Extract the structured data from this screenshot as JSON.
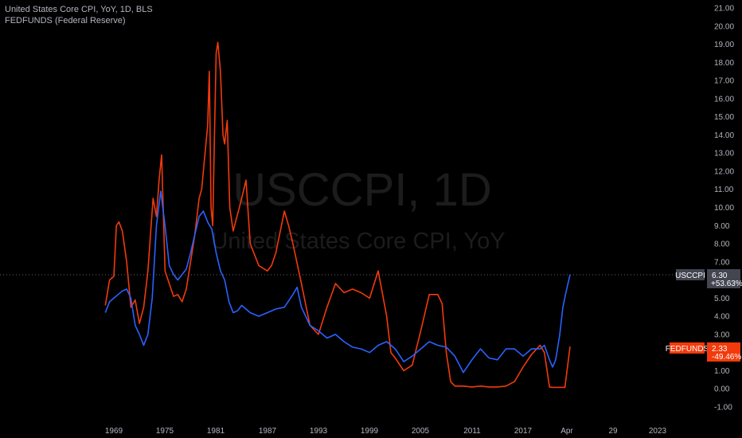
{
  "legend": {
    "line1": "United States Core CPI, YoY, 1D, BLS",
    "line2": "FEDFUNDS (Federal Reserve)"
  },
  "watermark": {
    "main": "USCCPI, 1D",
    "sub": "United States Core CPI, YoY"
  },
  "colors": {
    "background": "#000000",
    "cpi": "#2962ff",
    "fed": "#f23a0c",
    "text": "#b2b5be",
    "grid_dotted": "#555555",
    "cpi_tag": "#434651",
    "fed_tag": "#f23a0c"
  },
  "price_tags": {
    "cpi": {
      "name": "USCCPI",
      "value": "6.30",
      "change": "+53.63%"
    },
    "fed": {
      "name": "FEDFUNDS",
      "value": "2.33",
      "change": "-49.46%"
    }
  },
  "chart_data": {
    "type": "line",
    "title": "United States Core CPI, YoY, 1D, BLS",
    "x_tick_labels": [
      "1969",
      "1975",
      "1981",
      "1987",
      "1993",
      "1999",
      "2005",
      "2011",
      "2017",
      "Apr",
      "29",
      "2023"
    ],
    "y_tick_labels": [
      "21.00",
      "20.00",
      "19.00",
      "18.00",
      "17.00",
      "16.00",
      "15.00",
      "14.00",
      "13.00",
      "12.00",
      "11.00",
      "10.00",
      "9.00",
      "8.00",
      "7.00",
      "6.00",
      "5.00",
      "4.00",
      "3.00",
      "2.00",
      "1.00",
      "0.00",
      "-1.00"
    ],
    "ylim": [
      -1,
      21
    ],
    "grid": false,
    "series": [
      {
        "name": "USCCPI",
        "color": "#2962ff",
        "x": [
          1968,
          1968.5,
          1969,
          1969.5,
          1970,
          1970.5,
          1971,
          1971.5,
          1972,
          1972.5,
          1973,
          1973.5,
          1974,
          1974.5,
          1975,
          1975.5,
          1976,
          1976.5,
          1977,
          1977.5,
          1978,
          1978.5,
          1979,
          1979.5,
          1980,
          1980.5,
          1981,
          1981.5,
          1982,
          1982.5,
          1983,
          1983.5,
          1984,
          1985,
          1986,
          1987,
          1988,
          1989,
          1990,
          1990.5,
          1991,
          1992,
          1993,
          1994,
          1995,
          1996,
          1997,
          1998,
          1999,
          2000,
          2001,
          2002,
          2003,
          2004,
          2005,
          2006,
          2007,
          2008,
          2009,
          2010,
          2011,
          2012,
          2013,
          2014,
          2015,
          2016,
          2017,
          2018,
          2019,
          2019.5,
          2020,
          2020.3,
          2020.6,
          2021,
          2021.3,
          2021.6,
          2022
        ],
        "values": [
          4.2,
          4.8,
          5.0,
          5.2,
          5.4,
          5.5,
          5.0,
          3.5,
          3.0,
          2.4,
          3.0,
          5.0,
          9.0,
          10.9,
          9.0,
          6.8,
          6.3,
          6.0,
          6.3,
          6.6,
          7.5,
          8.5,
          9.5,
          9.8,
          9.2,
          8.8,
          7.5,
          6.5,
          6.0,
          4.8,
          4.2,
          4.3,
          4.6,
          4.2,
          4.0,
          4.2,
          4.4,
          4.5,
          5.2,
          5.6,
          4.5,
          3.5,
          3.2,
          2.8,
          3.0,
          2.6,
          2.3,
          2.2,
          2.0,
          2.4,
          2.6,
          2.2,
          1.5,
          1.8,
          2.2,
          2.6,
          2.4,
          2.3,
          1.8,
          0.9,
          1.6,
          2.2,
          1.7,
          1.6,
          2.2,
          2.2,
          1.8,
          2.2,
          2.2,
          2.4,
          1.6,
          1.2,
          1.6,
          3.0,
          4.5,
          5.3,
          6.3
        ]
      },
      {
        "name": "FEDFUNDS",
        "color": "#f23a0c",
        "x": [
          1968,
          1968.5,
          1969,
          1969.3,
          1969.6,
          1970,
          1970.5,
          1971,
          1971.5,
          1972,
          1972.5,
          1973,
          1973.3,
          1973.6,
          1974,
          1974.3,
          1974.6,
          1975,
          1975.5,
          1976,
          1976.5,
          1977,
          1977.5,
          1978,
          1978.5,
          1979,
          1979.3,
          1979.6,
          1980,
          1980.2,
          1980.4,
          1980.6,
          1980.8,
          1981,
          1981.2,
          1981.5,
          1981.8,
          1982,
          1982.3,
          1982.6,
          1983,
          1984,
          1984.5,
          1985,
          1986,
          1987,
          1987.5,
          1988,
          1989,
          1989.5,
          1990,
          1991,
          1992,
          1993,
          1994,
          1995,
          1996,
          1997,
          1998,
          1999,
          2000,
          2001,
          2001.5,
          2002,
          2003,
          2004,
          2005,
          2006,
          2007,
          2007.5,
          2008,
          2008.5,
          2009,
          2010,
          2011,
          2012,
          2013,
          2014,
          2015,
          2016,
          2017,
          2018,
          2019,
          2019.5,
          2020,
          2020.3,
          2021,
          2021.5,
          2022
        ],
        "values": [
          4.6,
          6.0,
          6.2,
          9.0,
          9.2,
          8.7,
          7.0,
          4.5,
          4.9,
          3.6,
          4.5,
          6.5,
          8.5,
          10.5,
          9.5,
          11.5,
          12.9,
          6.5,
          5.8,
          5.1,
          5.2,
          4.8,
          5.5,
          7.0,
          8.5,
          10.5,
          11.0,
          12.5,
          14.5,
          17.5,
          10.0,
          9.0,
          14.0,
          18.5,
          19.1,
          17.5,
          14.0,
          13.5,
          14.8,
          10.0,
          8.7,
          10.5,
          11.5,
          8.0,
          6.8,
          6.5,
          6.8,
          7.5,
          9.8,
          9.0,
          8.0,
          5.8,
          3.5,
          3.0,
          4.5,
          5.8,
          5.3,
          5.5,
          5.3,
          5.0,
          6.5,
          4.0,
          2.0,
          1.7,
          1.0,
          1.3,
          3.2,
          5.2,
          5.2,
          4.7,
          2.0,
          0.4,
          0.15,
          0.15,
          0.1,
          0.15,
          0.1,
          0.1,
          0.15,
          0.4,
          1.2,
          1.9,
          2.4,
          2.0,
          0.1,
          0.08,
          0.08,
          0.08,
          2.33
        ]
      }
    ]
  }
}
